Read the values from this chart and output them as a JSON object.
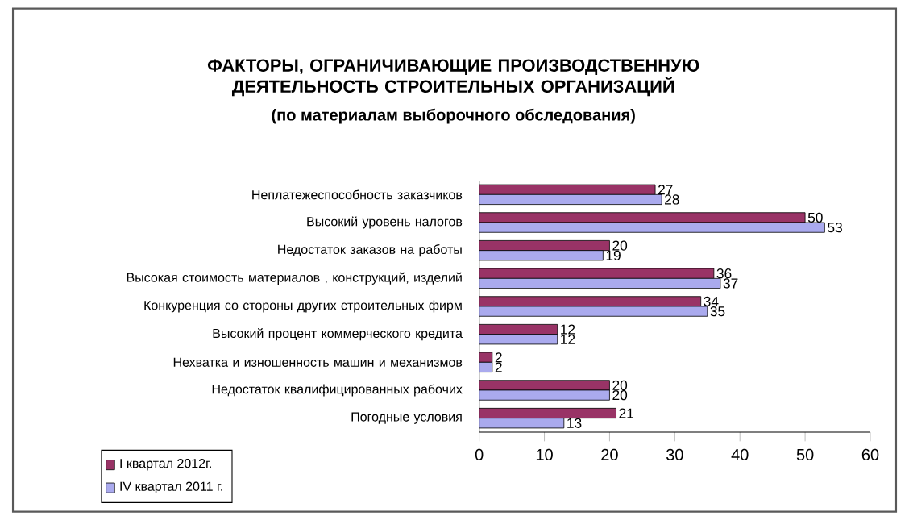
{
  "chart_data": {
    "type": "bar",
    "orientation": "horizontal",
    "title": "ФАКТОРЫ, ОГРАНИЧИВАЮЩИЕ ПРОИЗВОДСТВЕННУЮ ДЕЯТЕЛЬНОСТЬ  СТРОИТЕЛЬНЫХ ОРГАНИЗАЦИЙ",
    "subtitle": "(по материалам выборочного обследования)",
    "categories": [
      "Неплатежеспособность заказчиков",
      "Высокий уровень налогов",
      "Недостаток заказов на работы",
      "Высокая стоимость материалов , конструкций, изделий",
      "Конкуренция со стороны других строительных фирм",
      "Высокий процент коммерческого кредита",
      "Нехватка и изношенность машин и механизмов",
      "Недостаток квалифицированных рабочих",
      "Погодные условия"
    ],
    "series": [
      {
        "name": "I квартал 2012г.",
        "color": "#993366",
        "values": [
          27,
          50,
          20,
          36,
          34,
          12,
          2,
          20,
          21
        ]
      },
      {
        "name": "IV квартал 2011 г.",
        "color": "#aaaaee",
        "values": [
          28,
          53,
          19,
          37,
          35,
          12,
          2,
          20,
          13
        ]
      }
    ],
    "xlim": [
      0,
      60
    ],
    "xticks": [
      0,
      10,
      20,
      30,
      40,
      50,
      60
    ],
    "data_labels": true,
    "legend": "bottom left",
    "grid": false
  }
}
